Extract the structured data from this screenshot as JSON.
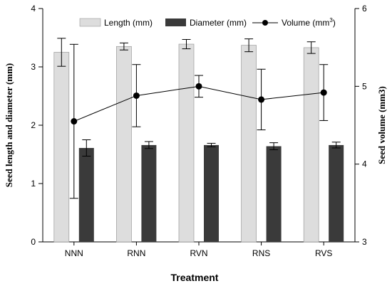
{
  "chart_data": {
    "type": "bar",
    "categories": [
      "NNN",
      "RNN",
      "RVN",
      "RNS",
      "RVS"
    ],
    "xlabel": "Treatment",
    "ylabel_left": "Seed length and diameter (mm)",
    "ylabel_right": "Seed volume (mm3)",
    "ylim_left": [
      0,
      4
    ],
    "ylim_right": [
      3,
      6
    ],
    "yticks_left": [
      "0",
      "1",
      "2",
      "3",
      "4"
    ],
    "yticks_right": [
      "3",
      "4",
      "5",
      "6"
    ],
    "legend": {
      "position": "top",
      "length_label": "Length (mm)",
      "diameter_label": "Diameter (mm)",
      "volume_label_base": "Volume (mm",
      "volume_label_sup": "3",
      "volume_label_end": ")"
    },
    "colors": {
      "length": "#dddddd",
      "diameter": "#3a3a3a",
      "volume": "#000000"
    },
    "series": [
      {
        "name": "Length (mm)",
        "type": "bar",
        "axis": "left",
        "values": [
          3.25,
          3.35,
          3.39,
          3.37,
          3.33
        ],
        "errors": [
          0.24,
          0.06,
          0.08,
          0.11,
          0.1
        ]
      },
      {
        "name": "Diameter (mm)",
        "type": "bar",
        "axis": "left",
        "values": [
          1.61,
          1.66,
          1.66,
          1.64,
          1.66
        ],
        "errors": [
          0.14,
          0.06,
          0.03,
          0.06,
          0.05
        ]
      },
      {
        "name": "Volume (mm3)",
        "type": "line",
        "axis": "right",
        "values": [
          4.55,
          4.88,
          5.0,
          4.83,
          4.92
        ],
        "errors": [
          0.99,
          0.4,
          0.14,
          0.39,
          0.36
        ]
      }
    ]
  }
}
